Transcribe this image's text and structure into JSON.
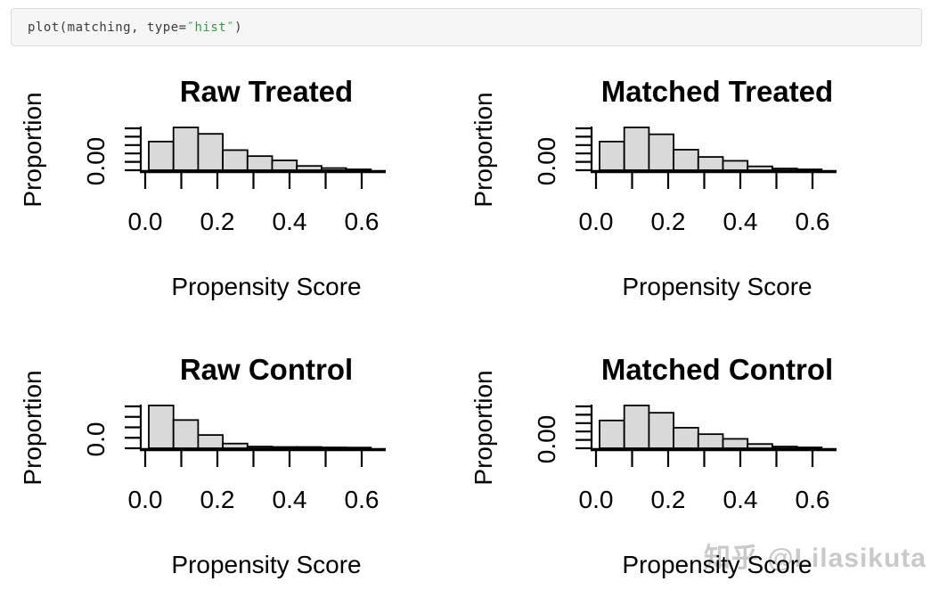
{
  "code_bar": {
    "prefix": "plot(matching, type=",
    "string": "″hist″",
    "suffix": ")"
  },
  "watermark": "知乎 @Lilasikuta",
  "colors": {
    "background": "#ffffff",
    "bar_fill": "#d9d9d9",
    "bar_stroke": "#000000",
    "axis_stroke": "#000000",
    "code_text": "#3b3b3b",
    "code_string_green": "#2f9e44",
    "code_bar_bg": "#f6f6f6",
    "watermark_gray": "#c9c9c9"
  },
  "chart_data": [
    {
      "type": "bar",
      "panel": "top-left",
      "title": "Raw Treated",
      "xlabel": "Propensity Score",
      "ylabel": "Proportion",
      "ytick_visible_label": "0.00",
      "n_yticks": 6,
      "x_tick_values": [
        0.0,
        0.1,
        0.2,
        0.3,
        0.4,
        0.5,
        0.6
      ],
      "x_tick_labels": [
        "0.0",
        "0.2",
        "0.4",
        "0.6"
      ],
      "xlim": [
        0.0,
        0.68
      ],
      "bin_start": 0.01,
      "bin_width": 0.068,
      "bar_heights_relative": [
        0.67,
        1.0,
        0.85,
        0.47,
        0.33,
        0.23,
        0.1,
        0.05,
        0.02
      ],
      "grid": "off",
      "legend": "none"
    },
    {
      "type": "bar",
      "panel": "top-right",
      "title": "Matched Treated",
      "xlabel": "Propensity Score",
      "ylabel": "Proportion",
      "ytick_visible_label": "0.00",
      "n_yticks": 6,
      "x_tick_values": [
        0.0,
        0.1,
        0.2,
        0.3,
        0.4,
        0.5,
        0.6
      ],
      "x_tick_labels": [
        "0.0",
        "0.2",
        "0.4",
        "0.6"
      ],
      "xlim": [
        0.0,
        0.68
      ],
      "bin_start": 0.01,
      "bin_width": 0.068,
      "bar_heights_relative": [
        0.67,
        1.0,
        0.84,
        0.48,
        0.31,
        0.22,
        0.09,
        0.04,
        0.02
      ],
      "grid": "off",
      "legend": "none"
    },
    {
      "type": "bar",
      "panel": "bottom-left",
      "title": "Raw Control",
      "xlabel": "Propensity Score",
      "ylabel": "Proportion",
      "ytick_visible_label": "0.0",
      "n_yticks": 5,
      "x_tick_values": [
        0.0,
        0.1,
        0.2,
        0.3,
        0.4,
        0.5,
        0.6
      ],
      "x_tick_labels": [
        "0.0",
        "0.2",
        "0.4",
        "0.6"
      ],
      "xlim": [
        0.0,
        0.68
      ],
      "bin_start": 0.01,
      "bin_width": 0.068,
      "bar_heights_relative": [
        1.0,
        0.66,
        0.31,
        0.11,
        0.04,
        0.03,
        0.03,
        0.02,
        0.01
      ],
      "grid": "off",
      "legend": "none"
    },
    {
      "type": "bar",
      "panel": "bottom-right",
      "title": "Matched Control",
      "xlabel": "Propensity Score",
      "ylabel": "Proportion",
      "ytick_visible_label": "0.00",
      "n_yticks": 6,
      "x_tick_values": [
        0.0,
        0.1,
        0.2,
        0.3,
        0.4,
        0.5,
        0.6
      ],
      "x_tick_labels": [
        "0.0",
        "0.2",
        "0.4",
        "0.6"
      ],
      "xlim": [
        0.0,
        0.68
      ],
      "bin_start": 0.01,
      "bin_width": 0.068,
      "bar_heights_relative": [
        0.65,
        1.0,
        0.83,
        0.48,
        0.33,
        0.22,
        0.1,
        0.04,
        0.02
      ],
      "grid": "off",
      "legend": "none"
    }
  ]
}
